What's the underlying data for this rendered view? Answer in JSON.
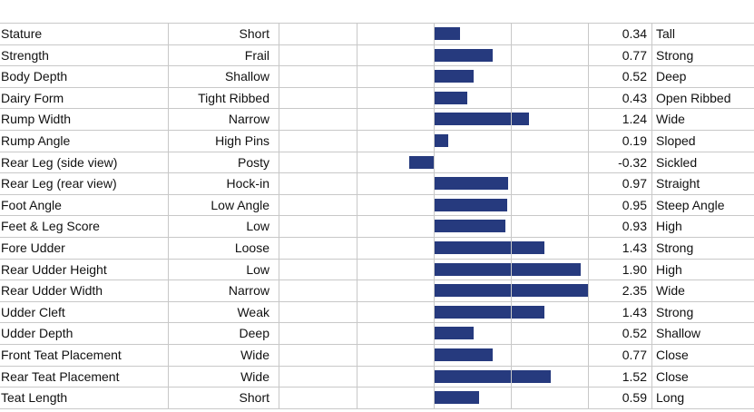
{
  "chart_data": {
    "type": "bar",
    "orientation": "horizontal",
    "xlim": [
      -2,
      2
    ],
    "gridlines": [
      -2,
      -1,
      0,
      1,
      2
    ],
    "bar_color": "#263a7e",
    "rows": [
      {
        "trait": "Stature",
        "low": "Short",
        "value": 0.34,
        "high": "Tall"
      },
      {
        "trait": "Strength",
        "low": "Frail",
        "value": 0.77,
        "high": "Strong"
      },
      {
        "trait": "Body Depth",
        "low": "Shallow",
        "value": 0.52,
        "high": "Deep"
      },
      {
        "trait": "Dairy Form",
        "low": "Tight Ribbed",
        "value": 0.43,
        "high": "Open Ribbed"
      },
      {
        "trait": "Rump Width",
        "low": "Narrow",
        "value": 1.24,
        "high": "Wide"
      },
      {
        "trait": "Rump Angle",
        "low": "High Pins",
        "value": 0.19,
        "high": "Sloped"
      },
      {
        "trait": "Rear Leg (side view)",
        "low": "Posty",
        "value": -0.32,
        "high": "Sickled"
      },
      {
        "trait": "Rear Leg (rear view)",
        "low": "Hock-in",
        "value": 0.97,
        "high": "Straight"
      },
      {
        "trait": "Foot Angle",
        "low": "Low Angle",
        "value": 0.95,
        "high": "Steep Angle"
      },
      {
        "trait": "Feet & Leg Score",
        "low": "Low",
        "value": 0.93,
        "high": "High"
      },
      {
        "trait": "Fore Udder",
        "low": "Loose",
        "value": 1.43,
        "high": "Strong"
      },
      {
        "trait": "Rear Udder Height",
        "low": "Low",
        "value": 1.9,
        "high": "High"
      },
      {
        "trait": "Rear Udder Width",
        "low": "Narrow",
        "value": 2.35,
        "high": "Wide"
      },
      {
        "trait": "Udder Cleft",
        "low": "Weak",
        "value": 1.43,
        "high": "Strong"
      },
      {
        "trait": "Udder Depth",
        "low": "Deep",
        "value": 0.52,
        "high": "Shallow"
      },
      {
        "trait": "Front Teat Placement",
        "low": "Wide",
        "value": 0.77,
        "high": "Close"
      },
      {
        "trait": "Rear Teat Placement",
        "low": "Wide",
        "value": 1.52,
        "high": "Close"
      },
      {
        "trait": "Teat Length",
        "low": "Short",
        "value": 0.59,
        "high": "Long"
      }
    ]
  }
}
